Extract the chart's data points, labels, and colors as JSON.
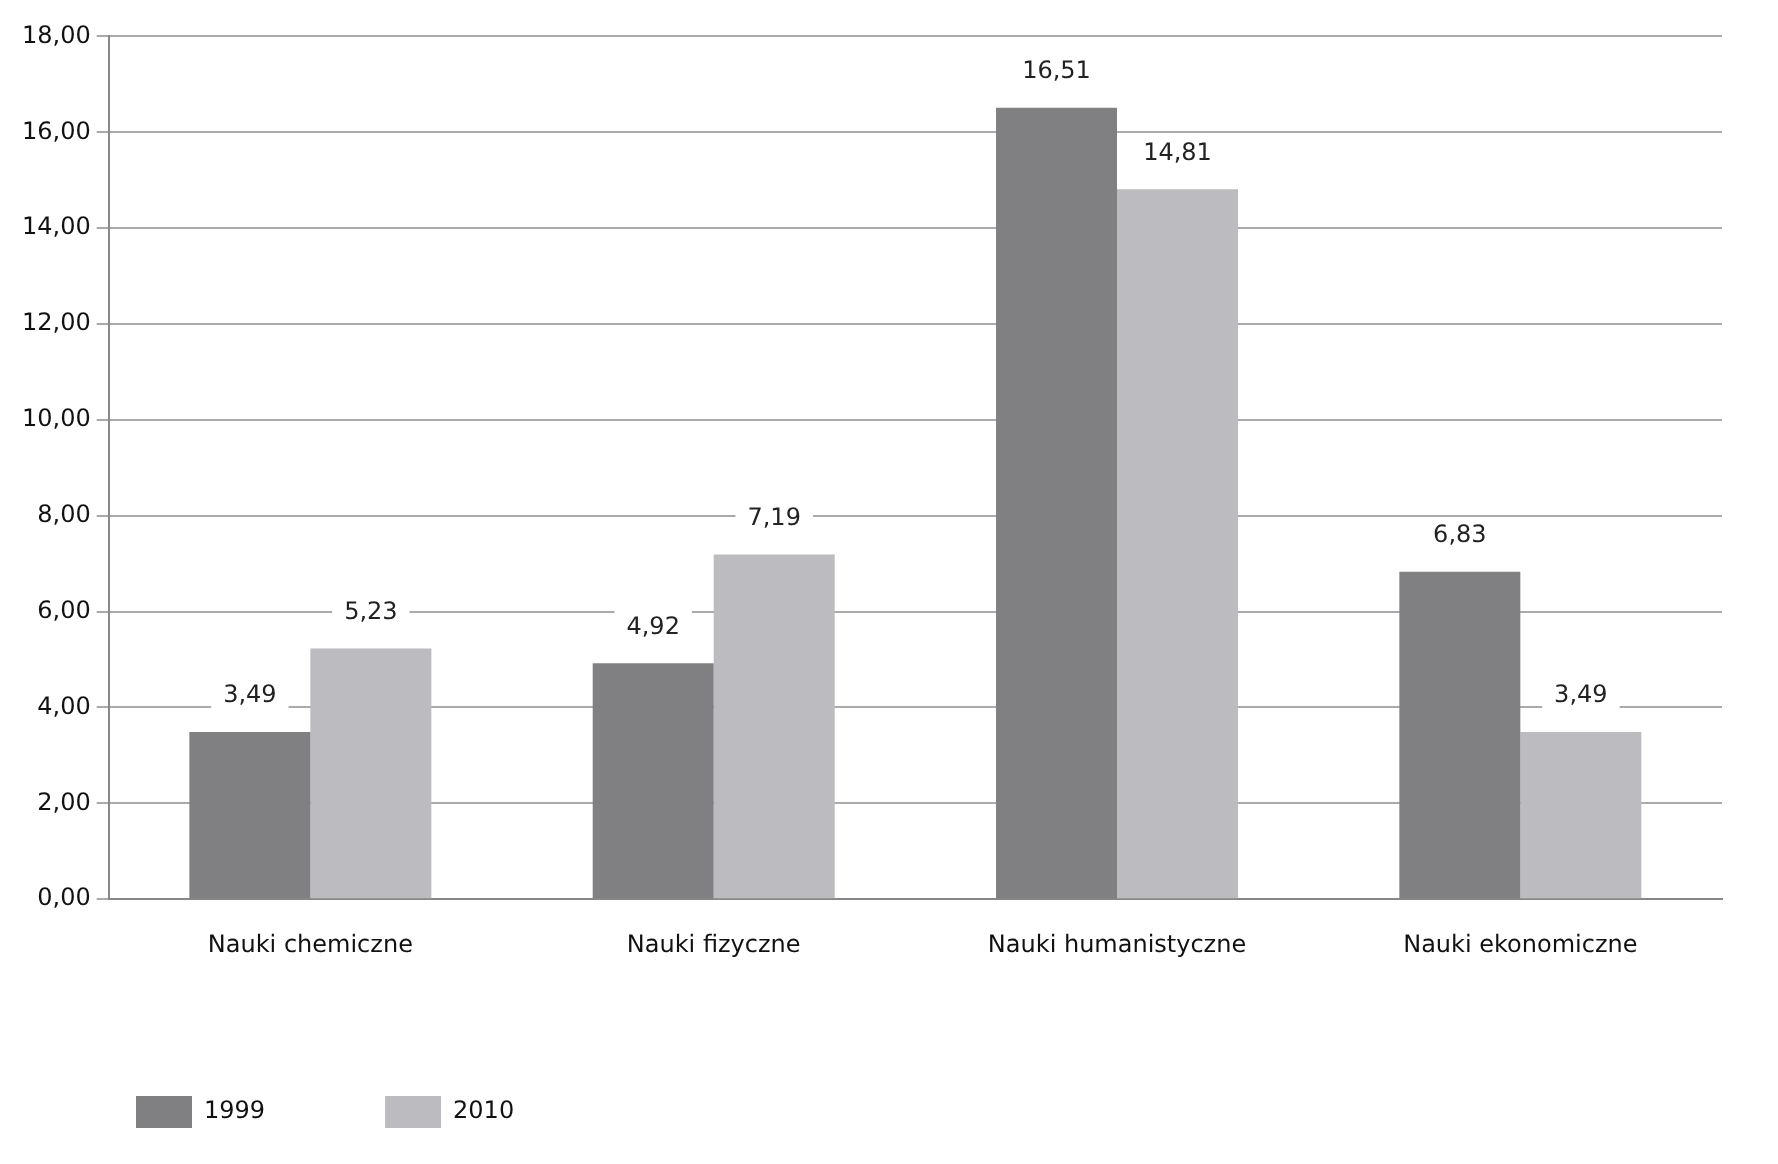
{
  "chart_data": {
    "type": "bar",
    "categories": [
      "Nauki chemiczne",
      "Nauki fizyczne",
      "Nauki humanistyczne",
      "Nauki ekonomiczne"
    ],
    "series": [
      {
        "name": "1999",
        "color": "#808083",
        "values": [
          3.49,
          4.92,
          16.51,
          6.83
        ],
        "value_labels": [
          "3,49",
          "4,92",
          "16,51",
          "6,83"
        ]
      },
      {
        "name": "2010",
        "color": "#bcbcc0",
        "values": [
          5.23,
          7.19,
          14.81,
          3.49
        ],
        "value_labels": [
          "5,23",
          "7,19",
          "14,81",
          "3,49"
        ]
      }
    ],
    "ylim": [
      0,
      18
    ],
    "yticks": [
      {
        "value": 0,
        "label": "0,00"
      },
      {
        "value": 2,
        "label": "2,00"
      },
      {
        "value": 4,
        "label": "4,00"
      },
      {
        "value": 6,
        "label": "6,00"
      },
      {
        "value": 8,
        "label": "8,00"
      },
      {
        "value": 10,
        "label": "10,00"
      },
      {
        "value": 12,
        "label": "12,00"
      },
      {
        "value": 14,
        "label": "14,00"
      },
      {
        "value": 16,
        "label": "16,00"
      },
      {
        "value": 18,
        "label": "18,00"
      }
    ],
    "grid": "y",
    "legend": "bottom left"
  }
}
